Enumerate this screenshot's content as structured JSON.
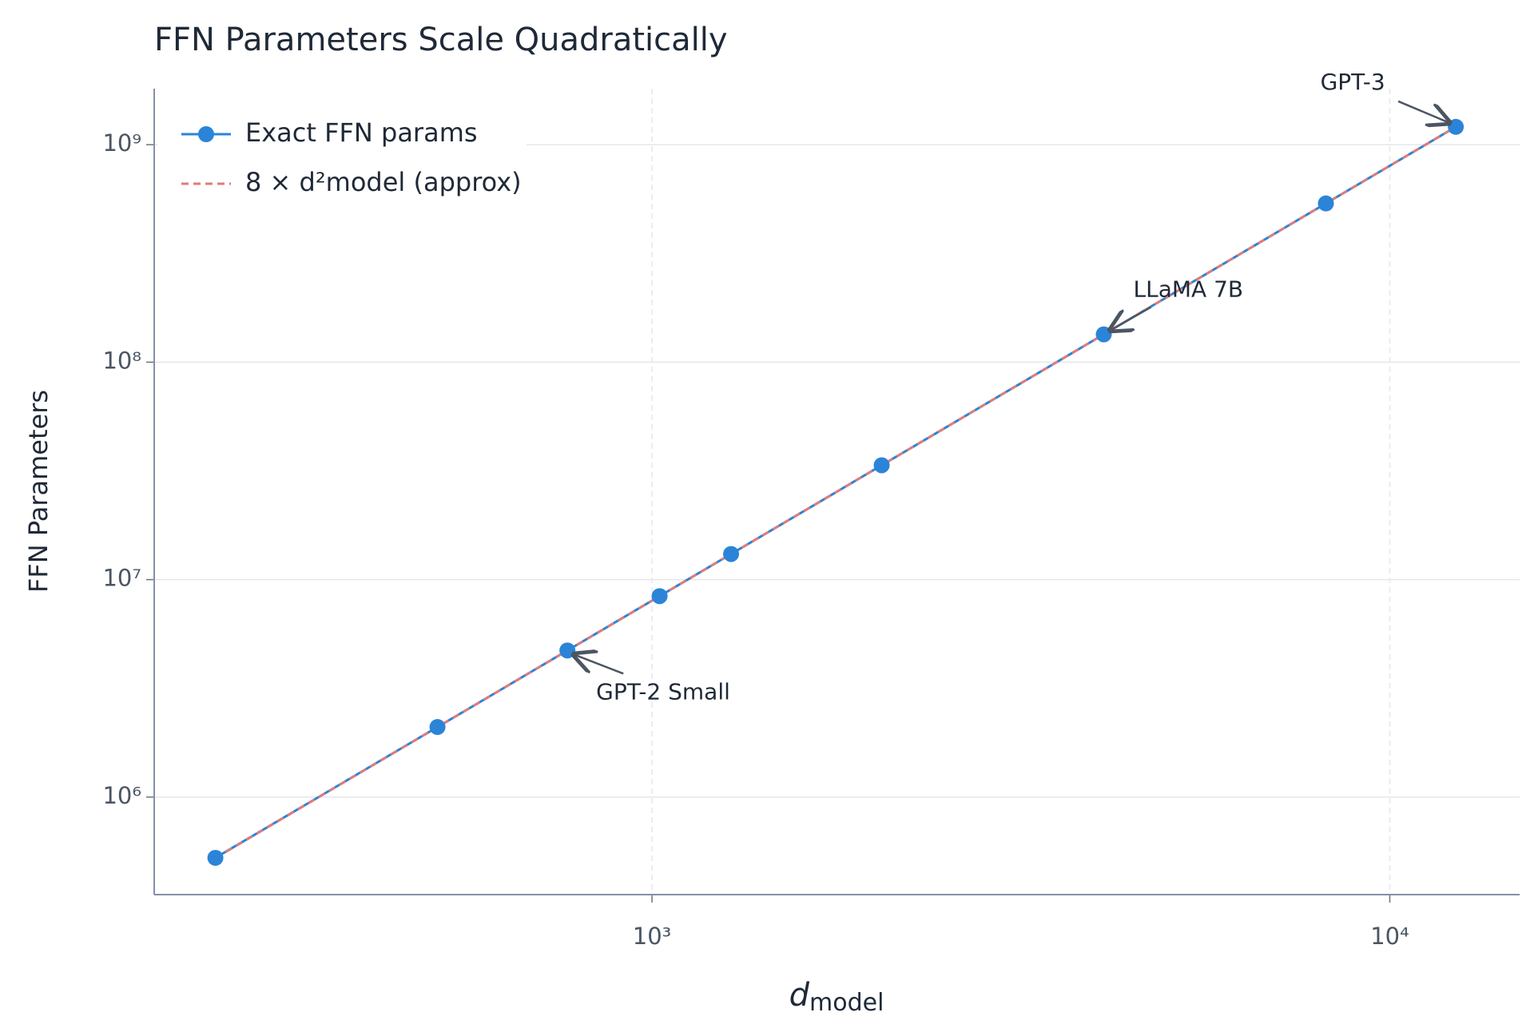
{
  "chart_data": {
    "type": "line",
    "title": "FFN Parameters Scale Quadratically",
    "xlabel": [
      "d",
      "model"
    ],
    "ylabel": "FFN Parameters",
    "xscale": "log",
    "yscale": "log",
    "x": [
      256,
      512,
      768,
      1024,
      1280,
      2048,
      4096,
      8192,
      12288
    ],
    "series": [
      {
        "name": "Exact FFN params",
        "color": "#2b84d8",
        "style": "solid",
        "marker": true,
        "values": [
          525568,
          2099712,
          4722432,
          8393728,
          13113600,
          33564672,
          134238208,
          536911872,
          1208020992
        ]
      },
      {
        "name": "8 × d²model (approx)",
        "color": "#e07b7b",
        "style": "dashed",
        "marker": false,
        "values": [
          524288,
          2097152,
          4718592,
          8388608,
          13107200,
          33554432,
          134217728,
          536870912,
          1207959552
        ]
      }
    ],
    "xlim": [
      211.5,
      14996
    ],
    "ylim": [
      356000,
      1810000000
    ],
    "xticks": [
      {
        "value": 1000,
        "label": "10³"
      },
      {
        "value": 10000,
        "label": "10⁴"
      }
    ],
    "yticks": [
      {
        "value": 1000000,
        "label": "10⁶"
      },
      {
        "value": 10000000,
        "label": "10⁷"
      },
      {
        "value": 100000000,
        "label": "10⁸"
      },
      {
        "value": 1000000000,
        "label": "10⁹"
      }
    ],
    "grid": true,
    "legend": "upper left",
    "annotations": [
      {
        "text": "GPT-2 Small",
        "xy": [
          768,
          4722432
        ]
      },
      {
        "text": "LLaMA 7B",
        "xy": [
          4096,
          134238208
        ]
      },
      {
        "text": "GPT-3",
        "xy": [
          12288,
          1208020992
        ]
      }
    ]
  }
}
